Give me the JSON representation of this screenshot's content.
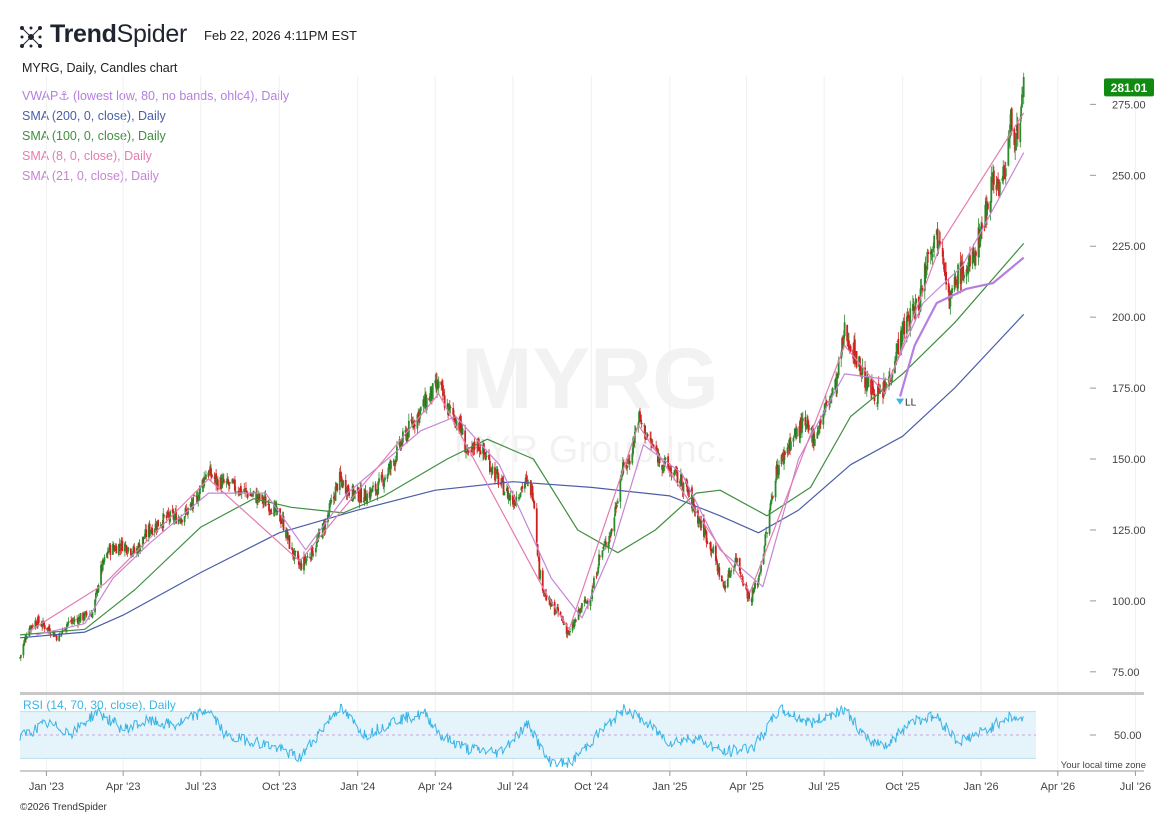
{
  "header": {
    "brand_bold": "Trend",
    "brand_light": "Spider",
    "timestamp": "Feb 22, 2026 4:11PM EST"
  },
  "chart_title": "MYRG, Daily, Candles chart",
  "watermark": {
    "ticker": "MYRG",
    "company": "MYR Group Inc."
  },
  "indicators": [
    {
      "label": "VWAP⚓ (lowest low, 80, no bands, ohlc4), Daily",
      "color": "#b57ee0"
    },
    {
      "label": "SMA (200, 0, close), Daily",
      "color": "#4a5ea8"
    },
    {
      "label": "SMA (100, 0, close), Daily",
      "color": "#3f8f3f"
    },
    {
      "label": "SMA (8, 0, close), Daily",
      "color": "#e47cb1"
    },
    {
      "label": "SMA (21, 0, close), Daily",
      "color": "#c585d6"
    }
  ],
  "rsi": {
    "label": "RSI (14, 70, 30, close), Daily",
    "color": "#3ab4e6",
    "upper": 70,
    "lower": 30,
    "mid_tick": "50.00",
    "ylim": [
      20,
      80
    ]
  },
  "annotation": "LL",
  "timezone_note": "Your local time zone",
  "copyright": "©2026 TrendSpider",
  "colors": {
    "up": "#2c8a2c",
    "down": "#d11f1f",
    "price_badge": "#118a11"
  },
  "chart_data": {
    "type": "candlestick",
    "ylim": [
      70,
      285
    ],
    "y_ticks": [
      75,
      100,
      125,
      150,
      175,
      200,
      225,
      250,
      275
    ],
    "y_tick_labels": [
      "75.00",
      "100.00",
      "125.00",
      "150.00",
      "175.00",
      "200.00",
      "225.00",
      "250.00",
      "275.00"
    ],
    "last_price": 281.01,
    "last_price_label": "281.01",
    "x_range": [
      "2022-12-01",
      "2026-07-31"
    ],
    "x_ticks": [
      "2023-01-01",
      "2023-04-01",
      "2023-07-01",
      "2023-10-01",
      "2024-01-01",
      "2024-04-01",
      "2024-07-01",
      "2024-10-01",
      "2025-01-01",
      "2025-04-01",
      "2025-07-01",
      "2025-10-01",
      "2026-01-01",
      "2026-04-01",
      "2026-07-01"
    ],
    "x_tick_labels": [
      "Jan '23",
      "Apr '23",
      "Jul '23",
      "Oct '23",
      "Jan '24",
      "Apr '24",
      "Jul '24",
      "Oct '24",
      "Jan '25",
      "Apr '25",
      "Jul '25",
      "Oct '25",
      "Jan '26",
      "Apr '26",
      "Jul '26"
    ],
    "close_path": [
      [
        "2022-12-01",
        80
      ],
      [
        "2022-12-10",
        90
      ],
      [
        "2022-12-20",
        93
      ],
      [
        "2023-01-05",
        90
      ],
      [
        "2023-01-15",
        87
      ],
      [
        "2023-01-25",
        92
      ],
      [
        "2023-02-10",
        94
      ],
      [
        "2023-02-25",
        96
      ],
      [
        "2023-03-05",
        110
      ],
      [
        "2023-03-15",
        118
      ],
      [
        "2023-04-01",
        120
      ],
      [
        "2023-04-15",
        117
      ],
      [
        "2023-05-01",
        125
      ],
      [
        "2023-05-20",
        129
      ],
      [
        "2023-06-10",
        130
      ],
      [
        "2023-06-25",
        135
      ],
      [
        "2023-07-08",
        146
      ],
      [
        "2023-07-20",
        142
      ],
      [
        "2023-08-10",
        140
      ],
      [
        "2023-09-01",
        137
      ],
      [
        "2023-09-20",
        134
      ],
      [
        "2023-10-05",
        128
      ],
      [
        "2023-10-15",
        118
      ],
      [
        "2023-10-25",
        112
      ],
      [
        "2023-11-10",
        118
      ],
      [
        "2023-11-25",
        128
      ],
      [
        "2023-12-10",
        143
      ],
      [
        "2023-12-25",
        138
      ],
      [
        "2024-01-10",
        137
      ],
      [
        "2024-01-25",
        140
      ],
      [
        "2024-02-10",
        148
      ],
      [
        "2024-02-25",
        158
      ],
      [
        "2024-03-10",
        165
      ],
      [
        "2024-03-25",
        172
      ],
      [
        "2024-04-05",
        176
      ],
      [
        "2024-04-15",
        168
      ],
      [
        "2024-04-30",
        162
      ],
      [
        "2024-05-10",
        150
      ],
      [
        "2024-05-20",
        156
      ],
      [
        "2024-06-01",
        150
      ],
      [
        "2024-06-15",
        142
      ],
      [
        "2024-07-01",
        135
      ],
      [
        "2024-07-15",
        142
      ],
      [
        "2024-07-25",
        138
      ],
      [
        "2024-08-01",
        110
      ],
      [
        "2024-08-10",
        100
      ],
      [
        "2024-08-25",
        95
      ],
      [
        "2024-09-05",
        88
      ],
      [
        "2024-09-20",
        98
      ],
      [
        "2024-10-01",
        102
      ],
      [
        "2024-10-10",
        115
      ],
      [
        "2024-10-25",
        125
      ],
      [
        "2024-11-05",
        145
      ],
      [
        "2024-11-15",
        150
      ],
      [
        "2024-11-25",
        165
      ],
      [
        "2024-12-05",
        158
      ],
      [
        "2024-12-20",
        150
      ],
      [
        "2025-01-05",
        145
      ],
      [
        "2025-01-20",
        140
      ],
      [
        "2025-02-05",
        128
      ],
      [
        "2025-02-20",
        118
      ],
      [
        "2025-03-05",
        105
      ],
      [
        "2025-03-20",
        115
      ],
      [
        "2025-04-05",
        100
      ],
      [
        "2025-04-15",
        108
      ],
      [
        "2025-04-25",
        125
      ],
      [
        "2025-05-05",
        145
      ],
      [
        "2025-05-20",
        155
      ],
      [
        "2025-06-05",
        162
      ],
      [
        "2025-06-20",
        158
      ],
      [
        "2025-07-05",
        170
      ],
      [
        "2025-07-15",
        176
      ],
      [
        "2025-07-25",
        195
      ],
      [
        "2025-08-05",
        188
      ],
      [
        "2025-08-20",
        176
      ],
      [
        "2025-09-05",
        172
      ],
      [
        "2025-09-15",
        178
      ],
      [
        "2025-09-25",
        190
      ],
      [
        "2025-10-05",
        198
      ],
      [
        "2025-10-20",
        205
      ],
      [
        "2025-11-01",
        225
      ],
      [
        "2025-11-15",
        230
      ],
      [
        "2025-11-25",
        205
      ],
      [
        "2025-12-05",
        215
      ],
      [
        "2025-12-20",
        218
      ],
      [
        "2026-01-05",
        235
      ],
      [
        "2026-01-15",
        250
      ],
      [
        "2026-01-25",
        245
      ],
      [
        "2026-02-05",
        268
      ],
      [
        "2026-02-15",
        262
      ],
      [
        "2026-02-20",
        281
      ]
    ],
    "series": [
      {
        "name": "SMA (200, 0, close), Daily",
        "points": [
          [
            "2022-12-01",
            87
          ],
          [
            "2023-02-15",
            89
          ],
          [
            "2023-04-01",
            95
          ],
          [
            "2023-07-01",
            110
          ],
          [
            "2023-10-01",
            124
          ],
          [
            "2024-01-01",
            132
          ],
          [
            "2024-04-01",
            139
          ],
          [
            "2024-07-01",
            142
          ],
          [
            "2024-10-01",
            140
          ],
          [
            "2025-01-01",
            137
          ],
          [
            "2025-03-01",
            130
          ],
          [
            "2025-04-15",
            124
          ],
          [
            "2025-06-01",
            132
          ],
          [
            "2025-08-01",
            148
          ],
          [
            "2025-10-01",
            158
          ],
          [
            "2025-12-01",
            175
          ],
          [
            "2026-02-20",
            201
          ]
        ]
      },
      {
        "name": "SMA (100, 0, close), Daily",
        "points": [
          [
            "2022-12-01",
            88
          ],
          [
            "2023-02-15",
            90
          ],
          [
            "2023-04-15",
            104
          ],
          [
            "2023-07-01",
            126
          ],
          [
            "2023-09-01",
            136
          ],
          [
            "2023-10-15",
            133
          ],
          [
            "2023-12-15",
            131
          ],
          [
            "2024-02-01",
            137
          ],
          [
            "2024-04-15",
            150
          ],
          [
            "2024-06-01",
            157
          ],
          [
            "2024-07-25",
            150
          ],
          [
            "2024-09-15",
            125
          ],
          [
            "2024-11-01",
            117
          ],
          [
            "2024-12-15",
            125
          ],
          [
            "2025-02-01",
            138
          ],
          [
            "2025-03-01",
            139
          ],
          [
            "2025-04-25",
            130
          ],
          [
            "2025-06-15",
            140
          ],
          [
            "2025-08-01",
            165
          ],
          [
            "2025-10-01",
            180
          ],
          [
            "2025-12-01",
            198
          ],
          [
            "2026-02-20",
            226
          ]
        ]
      },
      {
        "name": "SMA (21, 0, close), Daily",
        "points": [
          [
            "2022-12-20",
            88
          ],
          [
            "2023-02-15",
            92
          ],
          [
            "2023-03-20",
            108
          ],
          [
            "2023-05-01",
            120
          ],
          [
            "2023-07-10",
            138
          ],
          [
            "2023-09-15",
            138
          ],
          [
            "2023-11-01",
            118
          ],
          [
            "2023-12-20",
            138
          ],
          [
            "2024-03-15",
            160
          ],
          [
            "2024-04-25",
            165
          ],
          [
            "2024-06-15",
            148
          ],
          [
            "2024-08-15",
            108
          ],
          [
            "2024-09-20",
            94
          ],
          [
            "2024-10-25",
            118
          ],
          [
            "2024-12-01",
            155
          ],
          [
            "2025-01-15",
            145
          ],
          [
            "2025-03-01",
            118
          ],
          [
            "2025-04-20",
            105
          ],
          [
            "2025-06-01",
            150
          ],
          [
            "2025-07-25",
            180
          ],
          [
            "2025-09-15",
            178
          ],
          [
            "2025-10-25",
            205
          ],
          [
            "2025-12-10",
            218
          ],
          [
            "2026-02-20",
            258
          ]
        ]
      },
      {
        "name": "SMA (8, 0, close), Daily",
        "points": [
          [
            "2022-12-10",
            89
          ],
          [
            "2023-03-10",
            106
          ],
          [
            "2023-07-10",
            143
          ],
          [
            "2023-10-25",
            114
          ],
          [
            "2024-04-05",
            173
          ],
          [
            "2024-08-10",
            102
          ],
          [
            "2024-09-05",
            90
          ],
          [
            "2024-11-25",
            162
          ],
          [
            "2025-04-05",
            103
          ],
          [
            "2025-07-25",
            190
          ],
          [
            "2025-09-10",
            173
          ],
          [
            "2025-11-15",
            226
          ],
          [
            "2026-02-20",
            272
          ]
        ]
      },
      {
        "name": "VWAP⚓ (lowest low, 80, no bands, ohlc4), Daily",
        "points": [
          [
            "2025-09-28",
            172
          ],
          [
            "2025-10-15",
            190
          ],
          [
            "2025-11-10",
            205
          ],
          [
            "2025-12-15",
            210
          ],
          [
            "2026-01-15",
            212
          ],
          [
            "2026-02-20",
            221
          ]
        ]
      }
    ],
    "rsi_path": [
      [
        "2022-12-01",
        48
      ],
      [
        "2023-01-01",
        60
      ],
      [
        "2023-02-01",
        52
      ],
      [
        "2023-03-01",
        70
      ],
      [
        "2023-04-01",
        55
      ],
      [
        "2023-05-01",
        62
      ],
      [
        "2023-06-01",
        58
      ],
      [
        "2023-07-10",
        72
      ],
      [
        "2023-08-01",
        48
      ],
      [
        "2023-09-01",
        45
      ],
      [
        "2023-10-01",
        38
      ],
      [
        "2023-10-25",
        30
      ],
      [
        "2023-12-10",
        74
      ],
      [
        "2024-01-10",
        50
      ],
      [
        "2024-02-15",
        63
      ],
      [
        "2024-03-20",
        68
      ],
      [
        "2024-04-10",
        48
      ],
      [
        "2024-05-10",
        38
      ],
      [
        "2024-06-15",
        35
      ],
      [
        "2024-07-20",
        60
      ],
      [
        "2024-08-10",
        28
      ],
      [
        "2024-09-05",
        25
      ],
      [
        "2024-10-15",
        55
      ],
      [
        "2024-11-10",
        73
      ],
      [
        "2024-12-01",
        62
      ],
      [
        "2025-01-01",
        44
      ],
      [
        "2025-02-01",
        48
      ],
      [
        "2025-03-05",
        35
      ],
      [
        "2025-04-10",
        40
      ],
      [
        "2025-05-10",
        72
      ],
      [
        "2025-06-15",
        60
      ],
      [
        "2025-07-25",
        73
      ],
      [
        "2025-08-20",
        45
      ],
      [
        "2025-09-15",
        42
      ],
      [
        "2025-10-10",
        62
      ],
      [
        "2025-11-10",
        66
      ],
      [
        "2025-12-05",
        44
      ],
      [
        "2026-01-10",
        55
      ],
      [
        "2026-02-01",
        66
      ],
      [
        "2026-02-20",
        63
      ]
    ]
  }
}
